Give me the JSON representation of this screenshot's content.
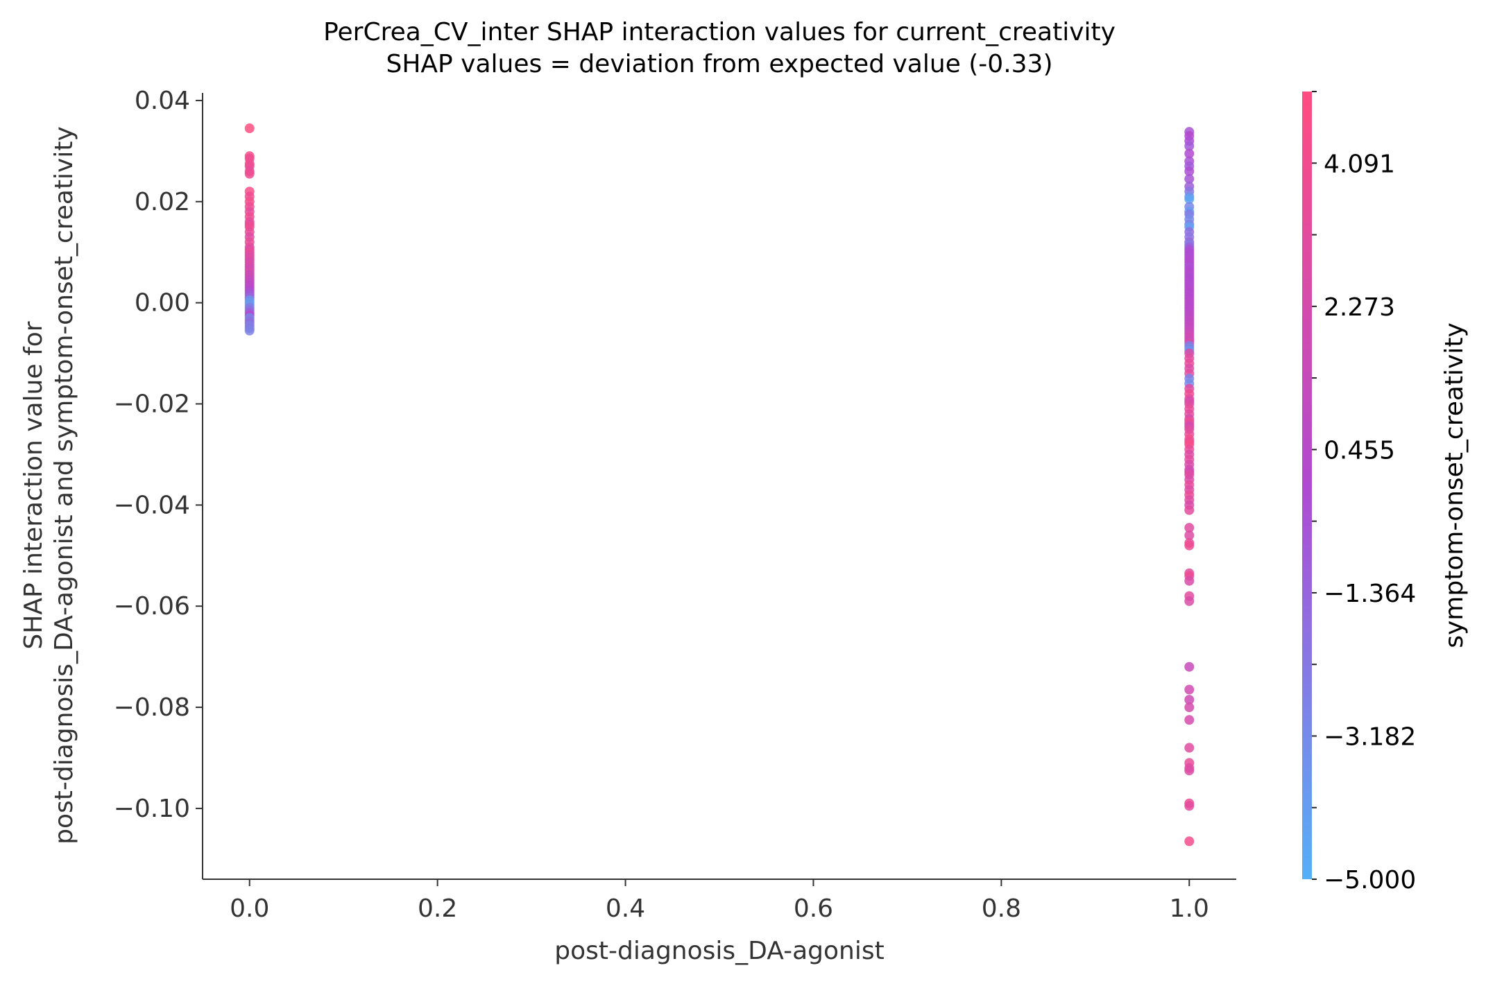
{
  "chart_data": {
    "type": "scatter",
    "title": "PerCrea_CV_inter SHAP interaction values for current_creativity",
    "subtitle": "SHAP values = deviation from expected value (-0.33)",
    "xlabel": "post-diagnosis_DA-agonist",
    "ylabel_lines": [
      "SHAP interaction value for",
      "post-diagnosis_DA-agonist and symptom-onset_creativity"
    ],
    "xlim": [
      -0.05,
      1.05
    ],
    "ylim": [
      -0.114,
      0.0415
    ],
    "x_ticks": [
      0.0,
      0.2,
      0.4,
      0.6,
      0.8,
      1.0
    ],
    "x_tick_labels": [
      "0.0",
      "0.2",
      "0.4",
      "0.6",
      "0.8",
      "1.0"
    ],
    "y_ticks": [
      0.04,
      0.02,
      0.0,
      -0.02,
      -0.04,
      -0.06,
      -0.08,
      -0.1
    ],
    "y_tick_labels": [
      "0.04",
      "0.02",
      "0.00",
      "−0.02",
      "−0.04",
      "−0.06",
      "−0.08",
      "−0.10"
    ],
    "grid": false,
    "colorbar": {
      "label": "symptom-onset_creativity",
      "range": [
        -5.0,
        5.0
      ],
      "tick_values": [
        4.091,
        2.273,
        0.455,
        -1.364,
        -3.182,
        -5.0
      ],
      "tick_labels": [
        "4.091",
        "2.273",
        "0.455",
        "−1.364",
        "−3.182",
        "−5.000"
      ],
      "low_color": "#55b0f5",
      "mid_color": "#b04ad0",
      "high_color": "#ff4d80"
    },
    "series": [
      {
        "x": 0.0,
        "points": [
          [
            0.0345,
            5.0
          ],
          [
            0.029,
            4.5
          ],
          [
            0.0285,
            4.0
          ],
          [
            0.0275,
            4.2
          ],
          [
            0.027,
            3.8
          ],
          [
            0.026,
            3.5
          ],
          [
            0.0255,
            4.0
          ],
          [
            0.022,
            4.5
          ],
          [
            0.021,
            4.0
          ],
          [
            0.02,
            4.3
          ],
          [
            0.019,
            3.9
          ],
          [
            0.018,
            3.5
          ],
          [
            0.017,
            4.0
          ],
          [
            0.016,
            3.7
          ],
          [
            0.0155,
            3.2
          ],
          [
            0.015,
            4.0
          ],
          [
            0.014,
            3.5
          ],
          [
            0.013,
            3.0
          ],
          [
            0.012,
            3.5
          ],
          [
            0.011,
            3.3
          ],
          [
            0.0105,
            2.8
          ],
          [
            0.01,
            3.6
          ],
          [
            0.0095,
            3.1
          ],
          [
            0.009,
            2.6
          ],
          [
            0.0085,
            3.0
          ],
          [
            0.008,
            2.4
          ],
          [
            0.0075,
            2.8
          ],
          [
            0.007,
            2.2
          ],
          [
            0.0065,
            2.0
          ],
          [
            0.006,
            2.5
          ],
          [
            0.0055,
            1.5
          ],
          [
            0.005,
            1.8
          ],
          [
            0.0045,
            1.2
          ],
          [
            0.004,
            1.0
          ],
          [
            0.0035,
            0.8
          ],
          [
            0.003,
            0.5
          ],
          [
            0.0025,
            0.3
          ],
          [
            0.002,
            -0.5
          ],
          [
            0.0015,
            -0.8
          ],
          [
            0.001,
            -1.5
          ],
          [
            0.0005,
            -3.5
          ],
          [
            0.0,
            -4.0
          ],
          [
            -0.0005,
            -3.8
          ],
          [
            -0.001,
            -2.5
          ],
          [
            -0.0015,
            -2.0
          ],
          [
            -0.002,
            -1.0
          ],
          [
            -0.0025,
            0.2
          ],
          [
            -0.003,
            -3.0
          ],
          [
            -0.0035,
            -2.2
          ],
          [
            -0.004,
            -1.8
          ],
          [
            -0.0045,
            -2.6
          ],
          [
            -0.005,
            -2.4
          ],
          [
            -0.0055,
            -2.8
          ]
        ]
      },
      {
        "x": 1.0,
        "points": [
          [
            0.0338,
            -0.5
          ],
          [
            0.033,
            0.2
          ],
          [
            0.032,
            -0.2
          ],
          [
            0.031,
            -0.8
          ],
          [
            0.0295,
            0.0
          ],
          [
            0.028,
            -0.4
          ],
          [
            0.027,
            -0.9
          ],
          [
            0.026,
            -0.3
          ],
          [
            0.0245,
            -0.6
          ],
          [
            0.023,
            -1.0
          ],
          [
            0.022,
            -2.2
          ],
          [
            0.021,
            -3.5
          ],
          [
            0.0205,
            -4.5
          ],
          [
            0.019,
            -3.0
          ],
          [
            0.018,
            -4.0
          ],
          [
            0.0175,
            -2.5
          ],
          [
            0.0165,
            -3.2
          ],
          [
            0.0155,
            -2.8
          ],
          [
            0.015,
            -4.2
          ],
          [
            0.014,
            -1.8
          ],
          [
            0.013,
            -2.0
          ],
          [
            0.012,
            -1.5
          ],
          [
            0.0115,
            -2.4
          ],
          [
            0.011,
            -1.2
          ],
          [
            0.0105,
            -0.5
          ],
          [
            0.01,
            -0.2
          ],
          [
            0.0095,
            0.0
          ],
          [
            0.009,
            -0.3
          ],
          [
            0.0085,
            0.2
          ],
          [
            0.008,
            -0.1
          ],
          [
            0.0075,
            0.3
          ],
          [
            0.007,
            -0.4
          ],
          [
            0.0065,
            0.1
          ],
          [
            0.006,
            0.0
          ],
          [
            0.0055,
            0.4
          ],
          [
            0.005,
            -0.2
          ],
          [
            0.0045,
            0.2
          ],
          [
            0.004,
            0.0
          ],
          [
            0.0035,
            0.3
          ],
          [
            0.003,
            -0.1
          ],
          [
            0.0025,
            0.5
          ],
          [
            0.002,
            0.1
          ],
          [
            0.0015,
            0.4
          ],
          [
            0.001,
            0.2
          ],
          [
            0.0005,
            0.6
          ],
          [
            0.0,
            0.3
          ],
          [
            -0.0005,
            0.5
          ],
          [
            -0.001,
            0.2
          ],
          [
            -0.0015,
            0.7
          ],
          [
            -0.002,
            0.4
          ],
          [
            -0.0025,
            0.8
          ],
          [
            -0.003,
            0.6
          ],
          [
            -0.0035,
            1.0
          ],
          [
            -0.004,
            0.8
          ],
          [
            -0.0045,
            1.2
          ],
          [
            -0.005,
            1.0
          ],
          [
            -0.0055,
            1.5
          ],
          [
            -0.006,
            1.3
          ],
          [
            -0.0065,
            1.8
          ],
          [
            -0.007,
            2.0
          ],
          [
            -0.0075,
            1.6
          ],
          [
            -0.008,
            2.5
          ],
          [
            -0.0085,
            -2.5
          ],
          [
            -0.009,
            -3.0
          ],
          [
            -0.0095,
            -3.5
          ],
          [
            -0.01,
            2.8
          ],
          [
            -0.011,
            3.0
          ],
          [
            -0.012,
            3.5
          ],
          [
            -0.013,
            2.6
          ],
          [
            -0.014,
            3.2
          ],
          [
            -0.015,
            -2.8
          ],
          [
            -0.016,
            -3.2
          ],
          [
            -0.017,
            3.0
          ],
          [
            -0.018,
            3.8
          ],
          [
            -0.019,
            3.4
          ],
          [
            -0.0195,
            2.2
          ],
          [
            -0.02,
            2.9
          ],
          [
            -0.021,
            3.6
          ],
          [
            -0.022,
            3.1
          ],
          [
            -0.023,
            2.4
          ],
          [
            -0.0235,
            4.0
          ],
          [
            -0.024,
            3.3
          ],
          [
            -0.0245,
            1.8
          ],
          [
            -0.025,
            3.0
          ],
          [
            -0.026,
            3.5
          ],
          [
            -0.027,
            4.2
          ],
          [
            -0.0275,
            3.8
          ],
          [
            -0.028,
            4.4
          ],
          [
            -0.029,
            3.6
          ],
          [
            -0.03,
            2.8
          ],
          [
            -0.031,
            3.2
          ],
          [
            -0.032,
            2.5
          ],
          [
            -0.033,
            2.2
          ],
          [
            -0.0335,
            2.0
          ],
          [
            -0.034,
            3.0
          ],
          [
            -0.035,
            2.6
          ],
          [
            -0.036,
            3.4
          ],
          [
            -0.037,
            2.8
          ],
          [
            -0.038,
            3.6
          ],
          [
            -0.039,
            3.0
          ],
          [
            -0.04,
            2.5
          ],
          [
            -0.041,
            3.2
          ],
          [
            -0.0445,
            3.0
          ],
          [
            -0.046,
            2.8
          ],
          [
            -0.0475,
            3.5
          ],
          [
            -0.048,
            4.0
          ],
          [
            -0.0535,
            3.0
          ],
          [
            -0.054,
            3.8
          ],
          [
            -0.055,
            2.5
          ],
          [
            -0.058,
            3.2
          ],
          [
            -0.059,
            2.6
          ],
          [
            -0.072,
            1.5
          ],
          [
            -0.0765,
            2.0
          ],
          [
            -0.0785,
            1.8
          ],
          [
            -0.08,
            2.2
          ],
          [
            -0.0825,
            2.4
          ],
          [
            -0.088,
            3.0
          ],
          [
            -0.091,
            3.5
          ],
          [
            -0.092,
            3.0
          ],
          [
            -0.0925,
            2.8
          ],
          [
            -0.099,
            3.8
          ],
          [
            -0.0995,
            3.2
          ],
          [
            -0.1065,
            4.2
          ]
        ]
      }
    ]
  }
}
